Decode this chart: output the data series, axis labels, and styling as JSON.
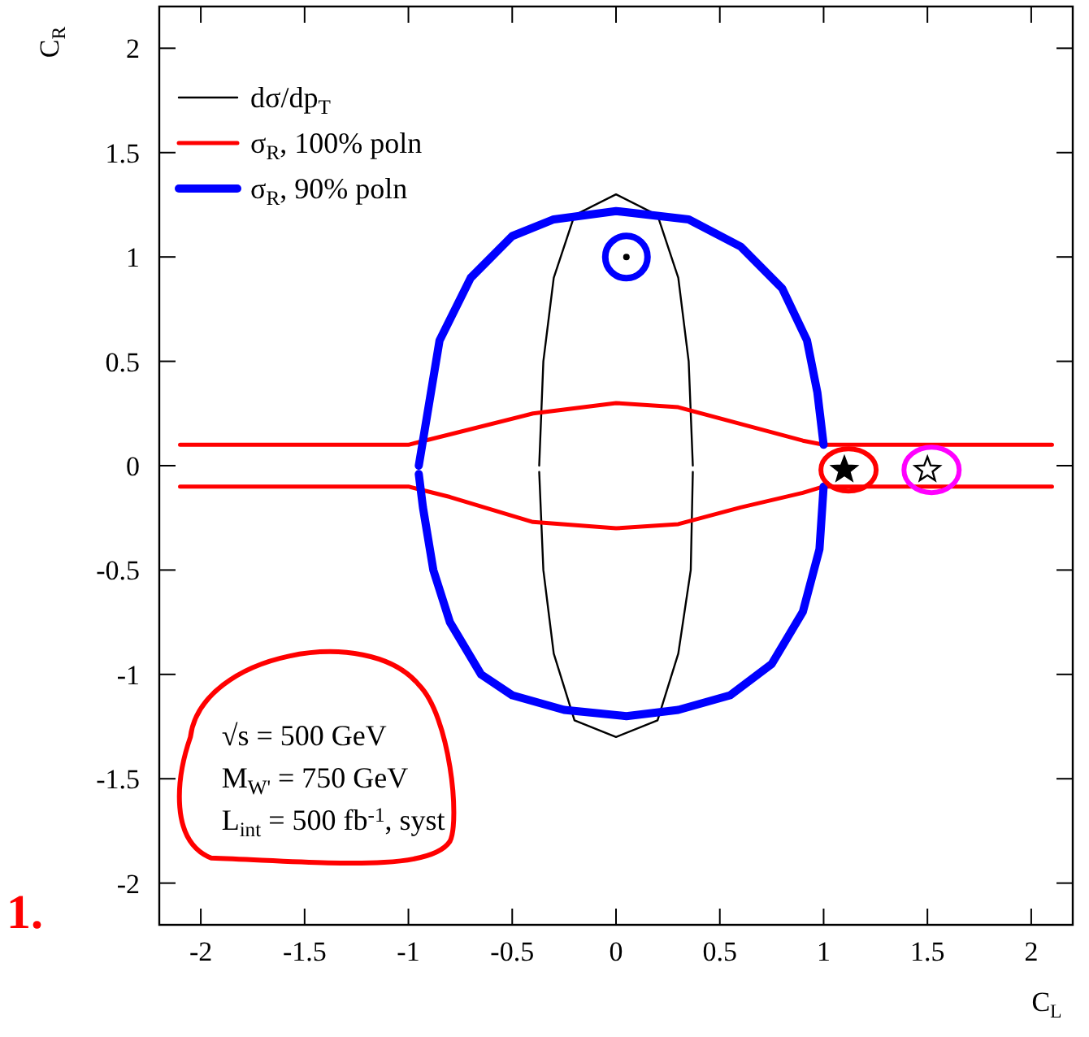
{
  "chart_data": {
    "type": "line",
    "xlabel": "C$_{L}$",
    "ylabel": "C$_{R}$",
    "xlim": [
      -2.2,
      2.2
    ],
    "ylim": [
      -2.2,
      2.2
    ],
    "xticks": [
      -2,
      -1.5,
      -1,
      -0.5,
      0,
      0.5,
      1,
      1.5,
      2
    ],
    "yticks": [
      -2,
      -1.5,
      -1,
      -0.5,
      0,
      0.5,
      1,
      1.5,
      2
    ],
    "grid": false,
    "legend": "top left",
    "line_style": "solid",
    "series": [
      {
        "name": "dσ/dp$_{T}$",
        "color": "#000000",
        "x": [
          -0.37,
          -0.35,
          -0.3,
          -0.2,
          0,
          0.2,
          0.3,
          0.35,
          0.37
        ],
        "values": [
          0,
          0.5,
          0.9,
          1.2,
          1.3,
          1.2,
          0.9,
          0.5,
          0
        ]
      },
      {
        "color": "#000000",
        "x": [
          -0.37,
          -0.35,
          -0.3,
          -0.2,
          0,
          0.2,
          0.3,
          0.36,
          0.37
        ],
        "values": [
          -0.03,
          -0.5,
          -0.9,
          -1.22,
          -1.3,
          -1.22,
          -0.9,
          -0.5,
          -0.03
        ]
      },
      {
        "name": "σ$_{R}$, 100% poln",
        "color": "#ff0000",
        "x": [
          -2.1,
          -1,
          -0.8,
          -0.4,
          0,
          0.3,
          0.6,
          0.9,
          1,
          2.1
        ],
        "values": [
          0.1,
          0.1,
          0.15,
          0.25,
          0.3,
          0.28,
          0.2,
          0.12,
          0.1,
          0.1
        ]
      },
      {
        "color": "#ff0000",
        "x": [
          -2.1,
          -1,
          -0.8,
          -0.4,
          0,
          0.3,
          0.6,
          0.9,
          1,
          2.1
        ],
        "values": [
          -0.1,
          -0.1,
          -0.15,
          -0.27,
          -0.3,
          -0.28,
          -0.2,
          -0.13,
          -0.1,
          -0.1
        ]
      },
      {
        "name": "σ$_{R}$, 90% poln",
        "color": "#0000ff",
        "x": [
          -0.95,
          -0.9,
          -0.85,
          -0.7,
          -0.5,
          -0.3,
          0,
          0.35,
          0.6,
          0.8,
          0.92,
          0.97,
          1
        ],
        "values": [
          0,
          0.3,
          0.6,
          0.9,
          1.1,
          1.18,
          1.22,
          1.18,
          1.05,
          0.85,
          0.6,
          0.35,
          0.1
        ]
      },
      {
        "color": "#0000ff",
        "x": [
          -0.95,
          -0.93,
          -0.88,
          -0.8,
          -0.65,
          -0.5,
          -0.25,
          0.05,
          0.3,
          0.55,
          0.75,
          0.9,
          0.98,
          1
        ],
        "values": [
          -0.04,
          -0.2,
          -0.5,
          -0.75,
          -1,
          -1.1,
          -1.17,
          -1.2,
          -1.17,
          -1.1,
          -0.95,
          -0.7,
          -0.4,
          -0.1
        ]
      },
      {
        "type": "scatter",
        "color": "#000000",
        "marker": "star",
        "x": [
          1.1
        ],
        "values": [
          -0.02
        ]
      },
      {
        "type": "scatter",
        "color": "#ffffff",
        "marker": "star",
        "x": [
          1.5
        ],
        "values": [
          -0.02
        ]
      },
      {
        "type": "scatter",
        "color": "#000000",
        "marker": "circle",
        "x": [
          0.05
        ],
        "values": [
          1.0
        ]
      }
    ],
    "annotations": [
      "√s = 500 GeV",
      "M$_{W'}$ = 750 GeV",
      "L$_{int}$ = 500 fb$^{-1}$, syst",
      "1."
    ]
  }
}
